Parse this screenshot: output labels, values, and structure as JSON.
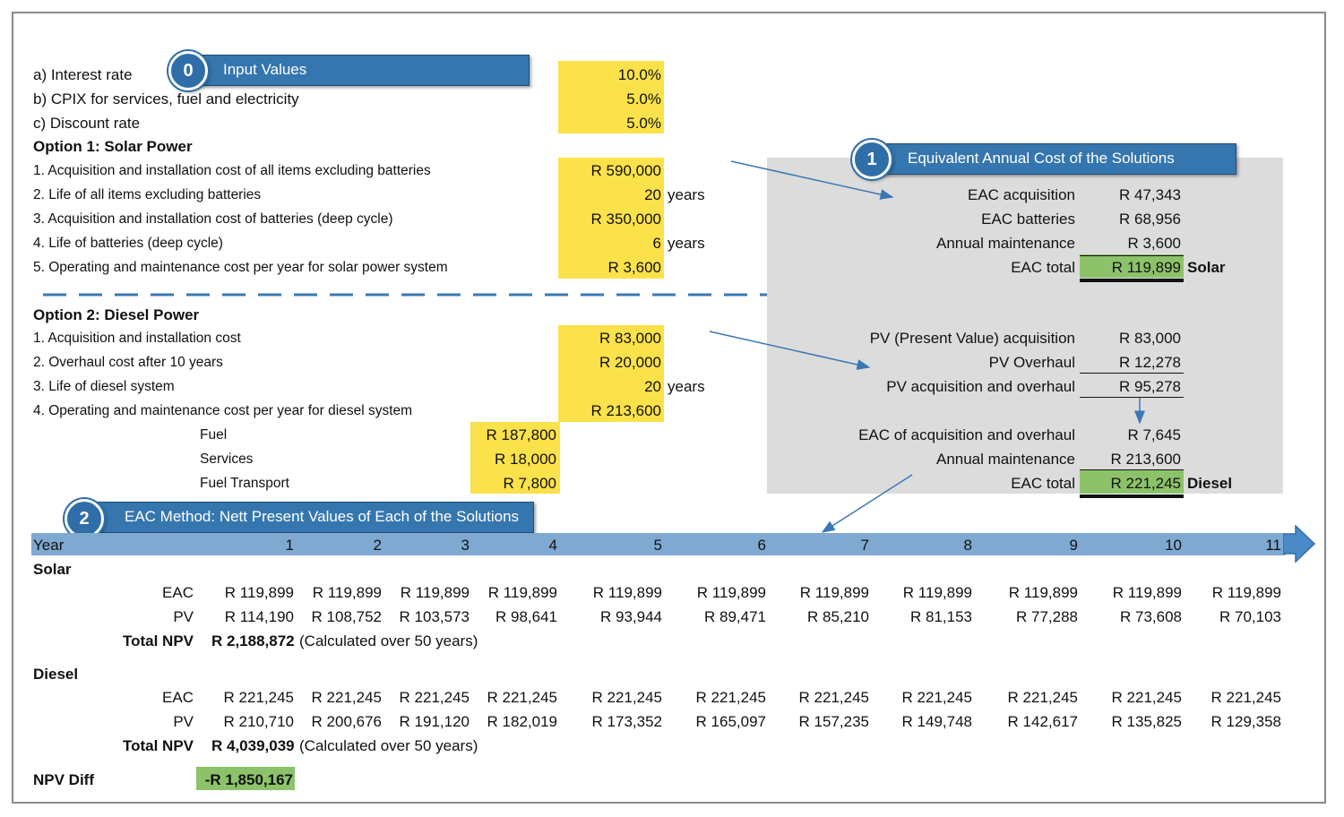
{
  "inputs": {
    "interest_label": "a) Interest rate",
    "interest_value": "10.0%",
    "cpix_label": "b) CPIX for services, fuel and electricity",
    "cpix_value": "5.0%",
    "discount_label": "c) Discount rate",
    "discount_value": "5.0%"
  },
  "banners": {
    "b0_num": "0",
    "b0_text": "Input Values",
    "b1_num": "1",
    "b1_text": "Equivalent Annual Cost of the Solutions",
    "b2_num": "2",
    "b2_text": "EAC Method: Nett Present Values of Each of the Solutions"
  },
  "solar": {
    "heading": "Option 1: Solar Power",
    "items": [
      {
        "label": "1.  Acquisition and installation cost of all items excluding batteries",
        "value": "R 590,000",
        "unit": ""
      },
      {
        "label": "2.  Life of all items excluding batteries",
        "value": "20",
        "unit": "years"
      },
      {
        "label": "3.  Acquisition and installation cost of batteries (deep cycle)",
        "value": "R 350,000",
        "unit": ""
      },
      {
        "label": "4.  Life of batteries (deep cycle)",
        "value": "6",
        "unit": "years"
      },
      {
        "label": "5.  Operating and maintenance cost per year for solar power system",
        "value": "R 3,600",
        "unit": ""
      }
    ]
  },
  "diesel": {
    "heading": "Option 2: Diesel Power",
    "items": [
      {
        "label": "1.  Acquisition and installation cost",
        "value": "R 83,000",
        "unit": ""
      },
      {
        "label": "2.  Overhaul cost after 10 years",
        "value": "R 20,000",
        "unit": ""
      },
      {
        "label": "3.  Life of diesel system",
        "value": "20",
        "unit": "years"
      },
      {
        "label": "4.  Operating and maintenance cost per year for diesel system",
        "value": "R 213,600",
        "unit": ""
      }
    ],
    "sub": [
      {
        "label": "Fuel",
        "value": "R 187,800"
      },
      {
        "label": "Services",
        "value": "R 18,000"
      },
      {
        "label": "Fuel Transport",
        "value": "R 7,800"
      }
    ]
  },
  "eac_solar": [
    {
      "label": "EAC acquisition",
      "value": "R 47,343"
    },
    {
      "label": "EAC batteries",
      "value": "R 68,956"
    },
    {
      "label": "Annual maintenance",
      "value": "R 3,600"
    },
    {
      "label": "EAC total",
      "value": "R 119,899",
      "tag": "Solar"
    }
  ],
  "eac_diesel": [
    {
      "label": "PV (Present Value) acquisition",
      "value": "R 83,000"
    },
    {
      "label": "PV Overhaul",
      "value": "R 12,278"
    },
    {
      "label": "PV acquisition and overhaul",
      "value": "R 95,278"
    },
    {
      "label": "EAC of acquisition and overhaul",
      "value": "R 7,645"
    },
    {
      "label": "Annual maintenance",
      "value": "R 213,600"
    },
    {
      "label": "EAC total",
      "value": "R 221,245",
      "tag": "Diesel"
    }
  ],
  "npv": {
    "year_label": "Year",
    "years": [
      "1",
      "2",
      "3",
      "4",
      "5",
      "6",
      "7",
      "8",
      "9",
      "10",
      "11"
    ],
    "solar_heading": "Solar",
    "diesel_heading": "Diesel",
    "eac_label": "EAC",
    "pv_label": "PV",
    "total_label": "Total NPV",
    "solar_eac": [
      "R 119,899",
      "R 119,899",
      "R 119,899",
      "R 119,899",
      "R 119,899",
      "R 119,899",
      "R 119,899",
      "R 119,899",
      "R 119,899",
      "R 119,899",
      "R 119,899"
    ],
    "solar_pv": [
      "R 114,190",
      "R 108,752",
      "R 103,573",
      "R 98,641",
      "R 93,944",
      "R 89,471",
      "R 85,210",
      "R 81,153",
      "R 77,288",
      "R 73,608",
      "R 70,103"
    ],
    "solar_total": "R 2,188,872",
    "diesel_eac": [
      "R 221,245",
      "R 221,245",
      "R 221,245",
      "R 221,245",
      "R 221,245",
      "R 221,245",
      "R 221,245",
      "R 221,245",
      "R 221,245",
      "R 221,245",
      "R 221,245"
    ],
    "diesel_pv": [
      "R 210,710",
      "R 200,676",
      "R 191,120",
      "R 182,019",
      "R 173,352",
      "R 165,097",
      "R 157,235",
      "R 149,748",
      "R 142,617",
      "R 135,825",
      "R 129,358"
    ],
    "diesel_total": "R 4,039,039",
    "calc_note": "(Calculated over 50 years)",
    "diff_label": "NPV Diff",
    "diff_value": "-R 1,850,167"
  },
  "colors": {
    "input_fill": "#fbe14a",
    "total_fill": "#8cc36a",
    "banner": "#3576ae",
    "year_bar": "#7fa9d0",
    "panel": "#dcdcdc"
  }
}
